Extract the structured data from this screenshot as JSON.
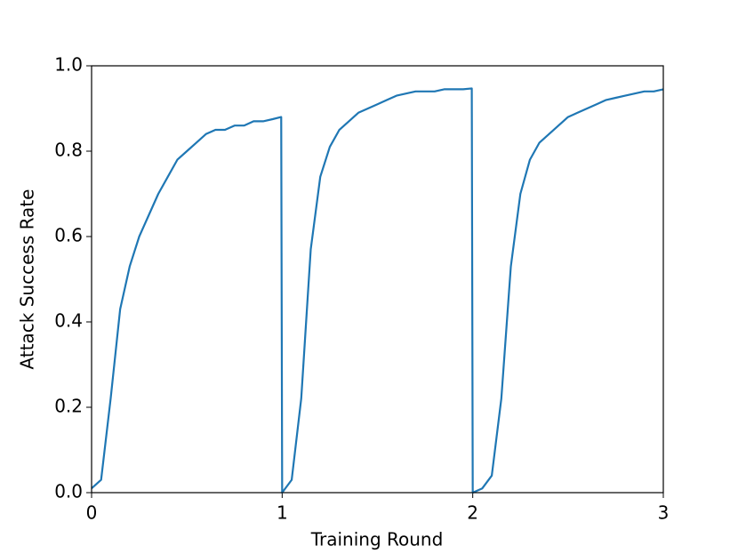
{
  "chart_data": {
    "type": "line",
    "x_label": "Training Round",
    "y_label": "Attack Success Rate",
    "x": [
      0,
      0.05,
      0.1,
      0.15,
      0.2,
      0.25,
      0.3,
      0.35,
      0.4,
      0.45,
      0.5,
      0.55,
      0.6,
      0.65,
      0.7,
      0.75,
      0.8,
      0.85,
      0.9,
      0.95,
      0.995,
      1.0,
      1.05,
      1.1,
      1.15,
      1.2,
      1.25,
      1.3,
      1.35,
      1.4,
      1.45,
      1.5,
      1.55,
      1.6,
      1.65,
      1.7,
      1.75,
      1.8,
      1.85,
      1.9,
      1.95,
      1.995,
      2.0,
      2.05,
      2.1,
      2.15,
      2.2,
      2.25,
      2.3,
      2.35,
      2.4,
      2.45,
      2.5,
      2.55,
      2.6,
      2.65,
      2.7,
      2.75,
      2.8,
      2.85,
      2.9,
      2.95,
      3.0
    ],
    "series": [
      {
        "color": "#1f77b4",
        "values": [
          0.01,
          0.03,
          0.22,
          0.43,
          0.53,
          0.6,
          0.65,
          0.7,
          0.74,
          0.78,
          0.8,
          0.82,
          0.84,
          0.85,
          0.85,
          0.86,
          0.86,
          0.87,
          0.87,
          0.875,
          0.88,
          0,
          0.03,
          0.22,
          0.57,
          0.74,
          0.81,
          0.85,
          0.87,
          0.89,
          0.9,
          0.91,
          0.92,
          0.93,
          0.935,
          0.94,
          0.94,
          0.94,
          0.945,
          0.945,
          0.945,
          0.947,
          0,
          0.01,
          0.04,
          0.22,
          0.53,
          0.7,
          0.78,
          0.82,
          0.84,
          0.86,
          0.88,
          0.89,
          0.9,
          0.91,
          0.92,
          0.925,
          0.93,
          0.935,
          0.94,
          0.94,
          0.945
        ]
      }
    ],
    "xlim": [
      0,
      3
    ],
    "ylim": [
      0,
      1
    ],
    "xticks": [
      0,
      1,
      2,
      3
    ],
    "yticks": [
      {
        "value": 0,
        "label": "0.0"
      },
      {
        "value": 0.2,
        "label": "0.2"
      },
      {
        "value": 0.4,
        "label": "0.4"
      },
      {
        "value": 0.6,
        "label": "0.6"
      },
      {
        "value": 0.8,
        "label": "0.8"
      },
      {
        "value": 1,
        "label": "1.0"
      }
    ]
  }
}
